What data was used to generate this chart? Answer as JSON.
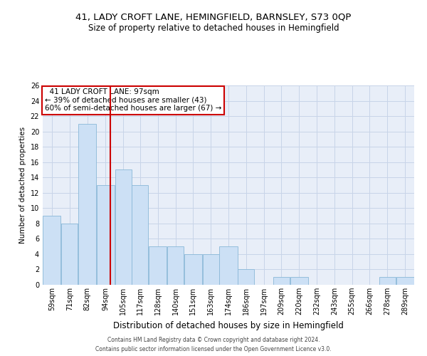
{
  "title1": "41, LADY CROFT LANE, HEMINGFIELD, BARNSLEY, S73 0QP",
  "title2": "Size of property relative to detached houses in Hemingfield",
  "xlabel": "Distribution of detached houses by size in Hemingfield",
  "ylabel": "Number of detached properties",
  "footer1": "Contains HM Land Registry data © Crown copyright and database right 2024.",
  "footer2": "Contains public sector information licensed under the Open Government Licence v3.0.",
  "annotation_line1": "  41 LADY CROFT LANE: 97sqm",
  "annotation_line2": "← 39% of detached houses are smaller (43)",
  "annotation_line3": "60% of semi-detached houses are larger (67) →",
  "bar_color": "#cce0f5",
  "bar_edge_color": "#8ab8d8",
  "red_line_color": "#cc0000",
  "annotation_box_edge_color": "#cc0000",
  "categories": [
    "59sqm",
    "71sqm",
    "82sqm",
    "94sqm",
    "105sqm",
    "117sqm",
    "128sqm",
    "140sqm",
    "151sqm",
    "163sqm",
    "174sqm",
    "186sqm",
    "197sqm",
    "209sqm",
    "220sqm",
    "232sqm",
    "243sqm",
    "255sqm",
    "266sqm",
    "278sqm",
    "289sqm"
  ],
  "values": [
    9,
    8,
    21,
    13,
    15,
    13,
    5,
    5,
    4,
    4,
    5,
    2,
    0,
    1,
    1,
    0,
    0,
    0,
    0,
    1,
    1
  ],
  "bin_edges": [
    53,
    65,
    76,
    88,
    100,
    111,
    122,
    134,
    145,
    157,
    168,
    180,
    191,
    203,
    214,
    226,
    237,
    249,
    260,
    272,
    283,
    295
  ],
  "red_line_x": 97,
  "ylim": [
    0,
    26
  ],
  "yticks": [
    0,
    2,
    4,
    6,
    8,
    10,
    12,
    14,
    16,
    18,
    20,
    22,
    24,
    26
  ],
  "grid_color": "#c8d4e8",
  "background_color": "#e8eef8",
  "title1_fontsize": 9.5,
  "title2_fontsize": 8.5,
  "xlabel_fontsize": 8.5,
  "ylabel_fontsize": 7.5,
  "tick_fontsize": 7,
  "footer_fontsize": 5.5,
  "annotation_fontsize": 7.5
}
